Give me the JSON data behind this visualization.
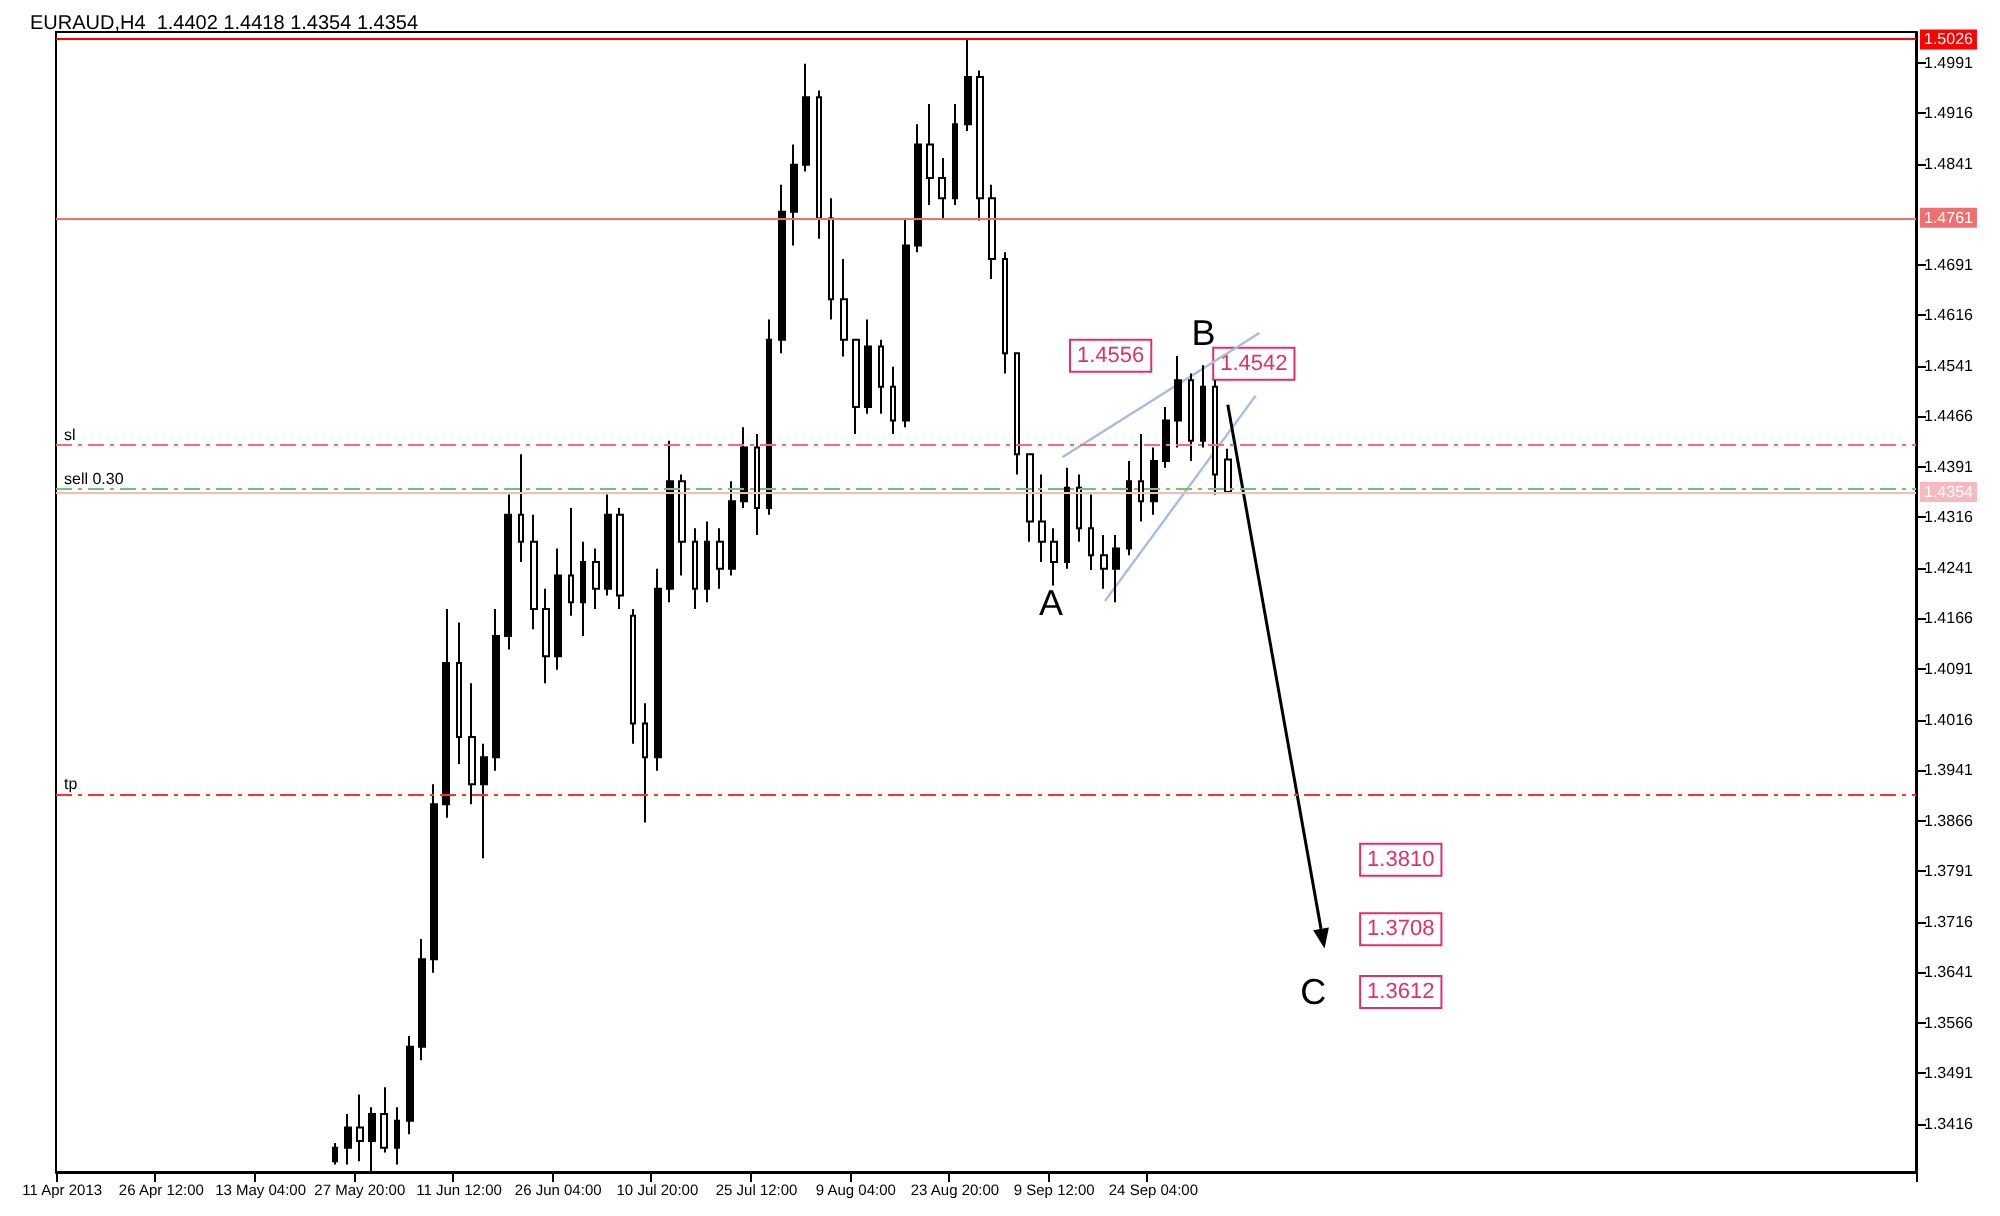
{
  "chart_data": {
    "type": "candlestick",
    "title": "EURAUD,H4  1.4402 1.4418 1.4354 1.4354",
    "categories": [
      "11 Apr 2013",
      null,
      null,
      null,
      null,
      null,
      null,
      null,
      "26 Apr 12:00",
      null,
      null,
      null,
      null,
      null,
      null,
      null,
      "13 May 04:00",
      null,
      null,
      null,
      null,
      null,
      null,
      null,
      "27 May 20:00",
      null,
      null,
      null,
      null,
      null,
      null,
      null,
      "11 Jun 12:00",
      null,
      null,
      null,
      null,
      null,
      null,
      null,
      "26 Jun 04:00",
      null,
      null,
      null,
      null,
      null,
      null,
      null,
      "10 Jul 20:00",
      null,
      null,
      null,
      null,
      null,
      null,
      null,
      "25 Jul 12:00",
      null,
      null,
      null,
      null,
      null,
      null,
      null,
      "9 Aug 04:00",
      null,
      null,
      null,
      null,
      null,
      null,
      null,
      "23 Aug 20:00",
      null,
      null,
      null,
      null,
      null,
      null,
      null,
      "9 Sep 12:00",
      null,
      null,
      null,
      null,
      null,
      null,
      null,
      "24 Sep 04:00",
      null,
      null,
      null,
      null,
      null,
      null,
      null,
      null,
      null,
      null,
      null,
      null,
      null,
      null,
      null,
      null,
      null,
      null,
      null,
      null,
      null,
      null,
      null,
      null,
      null,
      null,
      null,
      null,
      null,
      null,
      null,
      null,
      null,
      null,
      null,
      null,
      null,
      null,
      null,
      null,
      null,
      null,
      null,
      null,
      null,
      null,
      null,
      null,
      null,
      null,
      null,
      null,
      null,
      null,
      null,
      null,
      null,
      null,
      null,
      null,
      null
    ],
    "color": "#000000",
    "ohlc": [
      null,
      null,
      null,
      null,
      null,
      null,
      null,
      null,
      null,
      null,
      null,
      null,
      null,
      null,
      null,
      null,
      null,
      null,
      null,
      null,
      null,
      null,
      [
        1.336,
        1.3387,
        1.3355,
        1.338
      ],
      [
        1.338,
        1.343,
        1.3355,
        1.341
      ],
      [
        1.341,
        1.3459,
        1.336,
        1.339
      ],
      [
        1.339,
        1.344,
        1.3345,
        1.343
      ],
      [
        1.343,
        1.347,
        1.3373,
        1.338
      ],
      [
        1.338,
        1.344,
        1.3355,
        1.342
      ],
      [
        1.342,
        1.3546,
        1.34,
        1.353
      ],
      [
        1.353,
        1.369,
        1.351,
        1.366
      ],
      [
        1.366,
        1.392,
        1.364,
        1.389
      ],
      [
        1.389,
        1.418,
        1.387,
        1.41
      ],
      [
        1.41,
        1.416,
        1.395,
        1.399
      ],
      [
        1.399,
        1.407,
        1.389,
        1.392
      ],
      [
        1.392,
        1.398,
        1.381,
        1.396
      ],
      [
        1.396,
        1.418,
        1.394,
        1.414
      ],
      [
        1.414,
        1.435,
        1.412,
        1.432
      ],
      [
        1.432,
        1.441,
        1.425,
        1.428
      ],
      [
        1.428,
        1.432,
        1.415,
        1.418
      ],
      [
        1.418,
        1.421,
        1.407,
        1.411
      ],
      [
        1.411,
        1.427,
        1.409,
        1.423
      ],
      [
        1.423,
        1.433,
        1.417,
        1.419
      ],
      [
        1.419,
        1.428,
        1.414,
        1.425
      ],
      [
        1.425,
        1.427,
        1.418,
        1.421
      ],
      [
        1.421,
        1.435,
        1.42,
        1.432
      ],
      [
        1.432,
        1.433,
        1.418,
        1.42
      ],
      [
        1.417,
        1.418,
        1.398,
        1.401
      ],
      [
        1.401,
        1.404,
        1.3863,
        1.396
      ],
      [
        1.396,
        1.424,
        1.394,
        1.421
      ],
      [
        1.421,
        1.443,
        1.419,
        1.437
      ],
      [
        1.437,
        1.438,
        1.423,
        1.428
      ],
      [
        1.428,
        1.43,
        1.418,
        1.421
      ],
      [
        1.421,
        1.431,
        1.419,
        1.428
      ],
      [
        1.428,
        1.43,
        1.421,
        1.424
      ],
      [
        1.424,
        1.437,
        1.423,
        1.434
      ],
      [
        1.434,
        1.445,
        1.433,
        1.442
      ],
      [
        1.442,
        1.444,
        1.429,
        1.433
      ],
      [
        1.433,
        1.461,
        1.432,
        1.458
      ],
      [
        1.458,
        1.481,
        1.456,
        1.477
      ],
      [
        1.477,
        1.487,
        1.472,
        1.484
      ],
      [
        1.484,
        1.499,
        1.483,
        1.494
      ],
      [
        1.494,
        1.495,
        1.473,
        1.476
      ],
      [
        1.476,
        1.479,
        1.461,
        1.464
      ],
      [
        1.464,
        1.47,
        1.4555,
        1.458
      ],
      [
        1.458,
        1.458,
        1.444,
        1.448
      ],
      [
        1.448,
        1.461,
        1.447,
        1.457
      ],
      [
        1.457,
        1.458,
        1.447,
        1.451
      ],
      [
        1.451,
        1.454,
        1.444,
        1.446
      ],
      [
        1.446,
        1.476,
        1.445,
        1.472
      ],
      [
        1.472,
        1.49,
        1.471,
        1.487
      ],
      [
        1.487,
        1.493,
        1.478,
        1.482
      ],
      [
        1.482,
        1.485,
        1.476,
        1.479
      ],
      [
        1.479,
        1.493,
        1.478,
        1.49
      ],
      [
        1.49,
        1.5026,
        1.489,
        1.497
      ],
      [
        1.497,
        1.498,
        1.4757,
        1.479
      ],
      [
        1.479,
        1.481,
        1.467,
        1.47
      ],
      [
        1.47,
        1.471,
        1.453,
        1.456
      ],
      [
        1.456,
        1.456,
        1.438,
        1.441
      ],
      [
        1.441,
        1.441,
        1.428,
        1.431
      ],
      [
        1.431,
        1.438,
        1.425,
        1.428
      ],
      [
        1.428,
        1.43,
        1.4215,
        1.425
      ],
      [
        1.425,
        1.439,
        1.424,
        1.436
      ],
      [
        1.436,
        1.438,
        1.428,
        1.43
      ],
      [
        1.43,
        1.435,
        1.4238,
        1.426
      ],
      [
        1.426,
        1.429,
        1.421,
        1.424
      ],
      [
        1.424,
        1.429,
        1.419,
        1.427
      ],
      [
        1.427,
        1.44,
        1.426,
        1.437
      ],
      [
        1.437,
        1.444,
        1.431,
        1.434
      ],
      [
        1.434,
        1.442,
        1.432,
        1.44
      ],
      [
        1.44,
        1.448,
        1.439,
        1.446
      ],
      [
        1.446,
        1.4556,
        1.442,
        1.452
      ],
      [
        1.452,
        1.453,
        1.44,
        1.443
      ],
      [
        1.443,
        1.4542,
        1.442,
        1.451
      ],
      [
        1.451,
        1.452,
        1.435,
        1.438
      ],
      [
        1.4402,
        1.4418,
        1.4354,
        1.4354
      ],
      null,
      null,
      null,
      null,
      null,
      null,
      null,
      null,
      null,
      null,
      null,
      null,
      null,
      null,
      null,
      null,
      null,
      null,
      null,
      null,
      null,
      null,
      null,
      null,
      null,
      null,
      null,
      null,
      null,
      null,
      null,
      null,
      null,
      null,
      null,
      null,
      null,
      null,
      null,
      null,
      null,
      null,
      null,
      null,
      null,
      null,
      null,
      null,
      null,
      null,
      null,
      null,
      null,
      null,
      null
    ],
    "ylim": [
      1.3344,
      1.5037
    ],
    "yticks": [
      1.3416,
      1.3491,
      1.3566,
      1.3641,
      1.3716,
      1.3791,
      1.3866,
      1.3941,
      1.4016,
      1.4091,
      1.4166,
      1.4241,
      1.4316,
      1.4391,
      1.4466,
      1.4541,
      1.4616,
      1.4691,
      1.4841,
      1.4916,
      1.4991
    ],
    "ref_lines": [
      {
        "axis": "y",
        "value": 1.5026,
        "label": "1.5026",
        "color": "#ff0000",
        "line_style": "solid"
      },
      {
        "axis": "y",
        "value": 1.4761,
        "label": "1.4761",
        "color": "#f07070",
        "line_style": "solid"
      },
      {
        "axis": "y",
        "value": 1.4423,
        "label": "sl",
        "color": "#f07070",
        "line_style": "dashed"
      },
      {
        "axis": "y",
        "value": 1.4359,
        "label": "sell 0.30",
        "color": "#66cc66",
        "line_style": "dashed"
      },
      {
        "axis": "y",
        "value": 1.4354,
        "label": "1.4354",
        "color": "#f8b8c0",
        "line_style": "solid"
      },
      {
        "axis": "y",
        "value": 1.3906,
        "label": "tp",
        "color": "#ff3030",
        "line_style": "dashed"
      }
    ],
    "annotations": [
      "1.4556",
      "1.4542",
      "B",
      "A",
      "C",
      "1.3810",
      "1.3708",
      "1.3612"
    ]
  }
}
